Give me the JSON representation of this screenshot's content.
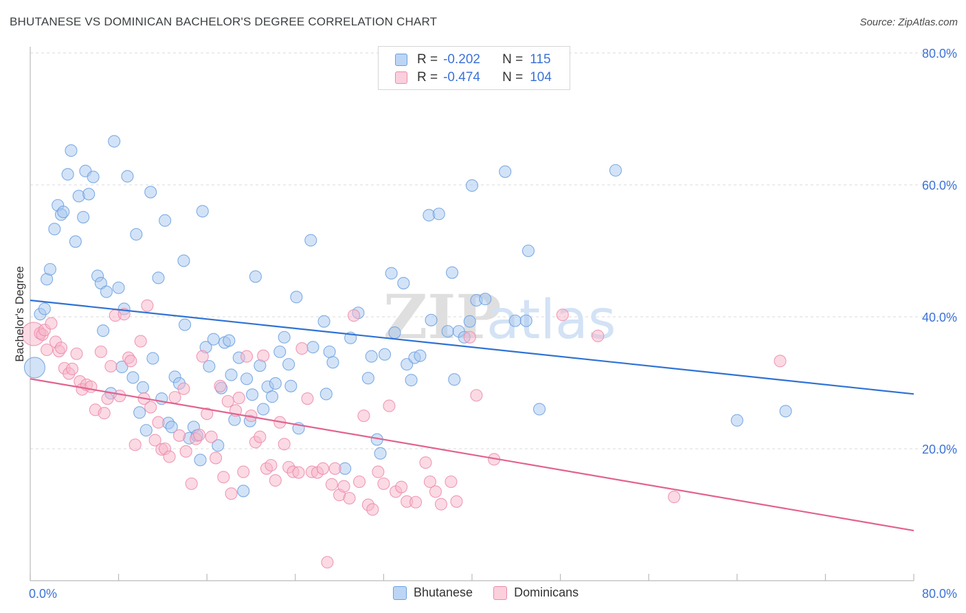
{
  "title": "BHUTANESE VS DOMINICAN BACHELOR'S DEGREE CORRELATION CHART",
  "source": "Source: ZipAtlas.com",
  "legend": {
    "r_label": "R =",
    "n_label": "N =",
    "rows": [
      {
        "r_value": "-0.202",
        "n_value": "115"
      },
      {
        "r_value": "-0.474",
        "n_value": "104"
      }
    ]
  },
  "watermark": "ZIPatlas",
  "colors": {
    "blue_fill": "#a8c8f0",
    "blue_stroke": "#6a9fe0",
    "blue_line": "#2f72d4",
    "pink_fill": "#f7b6ca",
    "pink_stroke": "#ec8aaa",
    "pink_line": "#e2628f",
    "tick_label": "#3b72d9",
    "grid": "#d9d9d9"
  },
  "chart_data": {
    "type": "scatter",
    "title": "BHUTANESE VS DOMINICAN BACHELOR'S DEGREE CORRELATION CHART",
    "xlabel": "",
    "ylabel": "Bachelor's Degree",
    "xlim": [
      0,
      80
    ],
    "ylim": [
      0,
      80
    ],
    "x_tick_labels": [
      "0.0%",
      "80.0%"
    ],
    "y_tick_labels": [
      "20.0%",
      "40.0%",
      "60.0%",
      "80.0%"
    ],
    "y_ticks": [
      20,
      40,
      60,
      80
    ],
    "grid": true,
    "legend_position": "bottom-center",
    "series": [
      {
        "name": "Bhutanese",
        "color": "blue",
        "trend": {
          "x": [
            0,
            80
          ],
          "y": [
            42.5,
            28.3
          ]
        },
        "points": [
          [
            0.4,
            32.3
          ],
          [
            0.9,
            40.4
          ],
          [
            1.3,
            41.2
          ],
          [
            1.5,
            45.7
          ],
          [
            1.8,
            47.2
          ],
          [
            2.2,
            53.3
          ],
          [
            2.5,
            56.9
          ],
          [
            2.8,
            55.5
          ],
          [
            3.0,
            55.9
          ],
          [
            3.4,
            61.6
          ],
          [
            3.7,
            65.2
          ],
          [
            4.1,
            51.4
          ],
          [
            4.4,
            58.3
          ],
          [
            4.8,
            55.1
          ],
          [
            5.0,
            62.1
          ],
          [
            5.3,
            58.6
          ],
          [
            5.7,
            61.2
          ],
          [
            6.1,
            46.2
          ],
          [
            6.4,
            45.1
          ],
          [
            6.6,
            37.9
          ],
          [
            6.9,
            43.8
          ],
          [
            7.3,
            28.4
          ],
          [
            7.6,
            66.6
          ],
          [
            8.0,
            44.4
          ],
          [
            8.3,
            32.4
          ],
          [
            8.5,
            41.2
          ],
          [
            8.8,
            61.3
          ],
          [
            9.3,
            30.8
          ],
          [
            9.6,
            52.5
          ],
          [
            9.9,
            25.5
          ],
          [
            10.2,
            29.3
          ],
          [
            10.5,
            22.8
          ],
          [
            10.9,
            58.9
          ],
          [
            11.1,
            33.7
          ],
          [
            11.6,
            45.9
          ],
          [
            11.9,
            27.6
          ],
          [
            12.2,
            54.6
          ],
          [
            12.5,
            23.9
          ],
          [
            12.8,
            23.3
          ],
          [
            13.1,
            30.9
          ],
          [
            13.5,
            29.9
          ],
          [
            13.9,
            48.5
          ],
          [
            14.0,
            38.8
          ],
          [
            14.4,
            21.6
          ],
          [
            14.8,
            23.3
          ],
          [
            15.1,
            22.0
          ],
          [
            15.4,
            18.3
          ],
          [
            15.6,
            56.0
          ],
          [
            15.9,
            35.4
          ],
          [
            16.2,
            32.5
          ],
          [
            16.6,
            36.6
          ],
          [
            17.0,
            20.5
          ],
          [
            17.3,
            29.2
          ],
          [
            17.6,
            36.1
          ],
          [
            18.0,
            36.4
          ],
          [
            18.2,
            31.2
          ],
          [
            18.5,
            24.4
          ],
          [
            18.9,
            33.8
          ],
          [
            19.3,
            13.6
          ],
          [
            19.6,
            30.6
          ],
          [
            19.9,
            24.2
          ],
          [
            20.1,
            28.2
          ],
          [
            20.4,
            46.1
          ],
          [
            20.8,
            32.6
          ],
          [
            21.1,
            26.0
          ],
          [
            21.5,
            29.4
          ],
          [
            21.9,
            27.9
          ],
          [
            22.2,
            29.9
          ],
          [
            22.6,
            34.7
          ],
          [
            23.0,
            36.9
          ],
          [
            23.4,
            32.8
          ],
          [
            23.6,
            29.5
          ],
          [
            24.1,
            43.0
          ],
          [
            24.3,
            23.1
          ],
          [
            25.4,
            51.6
          ],
          [
            25.6,
            35.4
          ],
          [
            26.6,
            39.3
          ],
          [
            26.8,
            28.3
          ],
          [
            27.1,
            34.7
          ],
          [
            27.4,
            33.1
          ],
          [
            28.5,
            17.0
          ],
          [
            29.0,
            36.8
          ],
          [
            29.7,
            40.6
          ],
          [
            30.6,
            30.7
          ],
          [
            30.9,
            34.0
          ],
          [
            31.4,
            21.4
          ],
          [
            31.7,
            19.3
          ],
          [
            32.1,
            34.3
          ],
          [
            32.7,
            46.6
          ],
          [
            33.0,
            37.6
          ],
          [
            33.8,
            45.1
          ],
          [
            34.1,
            32.8
          ],
          [
            34.5,
            30.4
          ],
          [
            34.8,
            33.8
          ],
          [
            35.3,
            34.1
          ],
          [
            36.1,
            55.4
          ],
          [
            36.3,
            39.5
          ],
          [
            37.0,
            55.6
          ],
          [
            37.8,
            37.8
          ],
          [
            38.2,
            46.7
          ],
          [
            38.4,
            30.5
          ],
          [
            38.8,
            37.8
          ],
          [
            39.3,
            36.9
          ],
          [
            39.8,
            39.3
          ],
          [
            40.0,
            59.9
          ],
          [
            40.4,
            42.5
          ],
          [
            41.2,
            42.7
          ],
          [
            43.0,
            62.0
          ],
          [
            43.9,
            39.4
          ],
          [
            44.9,
            39.4
          ],
          [
            45.1,
            50.0
          ],
          [
            46.1,
            26.0
          ],
          [
            53.0,
            62.2
          ],
          [
            64.0,
            24.3
          ],
          [
            68.4,
            25.7
          ]
        ]
      },
      {
        "name": "Dominicans",
        "color": "pink",
        "trend": {
          "x": [
            0,
            80
          ],
          "y": [
            30.6,
            7.6
          ]
        },
        "points": [
          [
            0.3,
            37.4
          ],
          [
            0.9,
            37.5
          ],
          [
            1.1,
            37.3
          ],
          [
            1.3,
            38.0
          ],
          [
            1.5,
            35.0
          ],
          [
            1.9,
            39.0
          ],
          [
            2.3,
            36.2
          ],
          [
            2.6,
            34.8
          ],
          [
            2.8,
            35.3
          ],
          [
            3.1,
            32.2
          ],
          [
            3.5,
            31.4
          ],
          [
            3.8,
            32.1
          ],
          [
            4.2,
            34.4
          ],
          [
            4.5,
            30.2
          ],
          [
            4.7,
            29.0
          ],
          [
            5.1,
            29.7
          ],
          [
            5.5,
            29.4
          ],
          [
            5.9,
            25.9
          ],
          [
            6.4,
            34.7
          ],
          [
            6.7,
            25.4
          ],
          [
            7.0,
            27.6
          ],
          [
            7.3,
            32.5
          ],
          [
            7.7,
            40.2
          ],
          [
            8.1,
            28.0
          ],
          [
            8.5,
            40.4
          ],
          [
            8.9,
            33.8
          ],
          [
            9.1,
            33.3
          ],
          [
            9.5,
            20.6
          ],
          [
            10.0,
            36.3
          ],
          [
            10.3,
            27.6
          ],
          [
            10.6,
            41.7
          ],
          [
            10.9,
            26.3
          ],
          [
            11.3,
            21.3
          ],
          [
            11.6,
            24.0
          ],
          [
            11.9,
            19.9
          ],
          [
            12.2,
            20.0
          ],
          [
            12.6,
            18.8
          ],
          [
            13.1,
            27.8
          ],
          [
            13.5,
            22.0
          ],
          [
            13.9,
            29.1
          ],
          [
            14.1,
            19.6
          ],
          [
            14.6,
            14.7
          ],
          [
            15.0,
            21.5
          ],
          [
            15.3,
            22.1
          ],
          [
            15.6,
            34.0
          ],
          [
            16.0,
            25.3
          ],
          [
            16.4,
            21.8
          ],
          [
            16.8,
            18.6
          ],
          [
            17.2,
            29.5
          ],
          [
            17.5,
            15.7
          ],
          [
            17.9,
            27.2
          ],
          [
            18.2,
            13.2
          ],
          [
            18.6,
            25.8
          ],
          [
            18.9,
            27.7
          ],
          [
            19.3,
            16.5
          ],
          [
            19.6,
            34.0
          ],
          [
            20.0,
            25.0
          ],
          [
            20.4,
            21.0
          ],
          [
            20.8,
            21.8
          ],
          [
            21.1,
            34.1
          ],
          [
            21.4,
            17.0
          ],
          [
            21.8,
            17.5
          ],
          [
            22.2,
            15.2
          ],
          [
            22.6,
            24.0
          ],
          [
            23.0,
            20.7
          ],
          [
            23.4,
            17.2
          ],
          [
            23.8,
            16.5
          ],
          [
            24.3,
            16.4
          ],
          [
            24.6,
            35.2
          ],
          [
            25.1,
            27.6
          ],
          [
            25.5,
            16.5
          ],
          [
            26.0,
            16.4
          ],
          [
            26.5,
            17.0
          ],
          [
            26.9,
            2.8
          ],
          [
            27.3,
            14.6
          ],
          [
            27.6,
            17.0
          ],
          [
            28.0,
            13.0
          ],
          [
            28.4,
            14.3
          ],
          [
            28.9,
            12.5
          ],
          [
            29.3,
            40.2
          ],
          [
            29.8,
            15.0
          ],
          [
            30.2,
            25.0
          ],
          [
            30.6,
            11.5
          ],
          [
            31.0,
            10.8
          ],
          [
            31.5,
            16.5
          ],
          [
            32.0,
            14.7
          ],
          [
            32.5,
            26.5
          ],
          [
            33.1,
            13.5
          ],
          [
            33.6,
            14.2
          ],
          [
            34.1,
            12.0
          ],
          [
            34.9,
            11.9
          ],
          [
            35.8,
            17.9
          ],
          [
            36.2,
            15.0
          ],
          [
            36.7,
            13.5
          ],
          [
            37.2,
            11.6
          ],
          [
            38.1,
            15.0
          ],
          [
            38.6,
            12.0
          ],
          [
            39.8,
            36.9
          ],
          [
            40.4,
            28.1
          ],
          [
            42.0,
            18.4
          ],
          [
            48.2,
            40.3
          ],
          [
            51.4,
            37.1
          ],
          [
            58.3,
            12.7
          ],
          [
            67.9,
            33.3
          ]
        ]
      }
    ]
  },
  "bottom_legend": [
    "Bhutanese",
    "Dominicans"
  ]
}
